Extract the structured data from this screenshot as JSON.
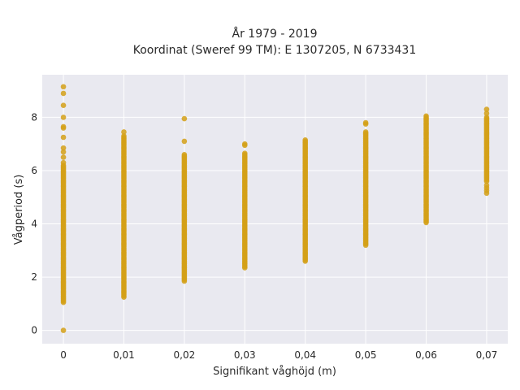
{
  "chart_data": {
    "type": "scatter",
    "title_lines": [
      "År 1979 - 2019",
      "Koordinat (Sweref 99 TM): E 1307205, N 6733431"
    ],
    "xlabel": "Signifikant våghöjd (m)",
    "ylabel": "Vågperiod (s)",
    "xlim": [
      -0.0035,
      0.0735
    ],
    "ylim": [
      -0.5,
      9.6
    ],
    "x_ticks": [
      0,
      0.01,
      0.02,
      0.03,
      0.04,
      0.05,
      0.06,
      0.07
    ],
    "x_tick_labels": [
      "0",
      "0,01",
      "0,02",
      "0,03",
      "0,04",
      "0,05",
      "0,06",
      "0,07"
    ],
    "y_ticks": [
      0,
      2,
      4,
      6,
      8
    ],
    "y_tick_labels": [
      "0",
      "2",
      "4",
      "6",
      "8"
    ],
    "grid": true,
    "background": "#e9e9f0",
    "grid_color": "#ffffff",
    "marker_color": "#d4a017",
    "columns": [
      {
        "x": 0,
        "min": 1.05,
        "max": 6.2,
        "extra": [
          0.0,
          6.3,
          6.5,
          6.7,
          6.85,
          7.25,
          7.6,
          7.65,
          8.0,
          8.45,
          8.9,
          9.15
        ]
      },
      {
        "x": 0.01,
        "min": 1.25,
        "max": 7.3,
        "extra": [
          7.45
        ]
      },
      {
        "x": 0.02,
        "min": 1.85,
        "max": 6.6,
        "extra": [
          7.1,
          7.95
        ]
      },
      {
        "x": 0.03,
        "min": 2.35,
        "max": 6.65,
        "extra": [
          6.95,
          7.0
        ]
      },
      {
        "x": 0.04,
        "min": 2.6,
        "max": 7.15,
        "extra": []
      },
      {
        "x": 0.05,
        "min": 3.2,
        "max": 7.45,
        "extra": [
          7.75,
          7.8
        ]
      },
      {
        "x": 0.06,
        "min": 4.05,
        "max": 8.05,
        "extra": []
      },
      {
        "x": 0.07,
        "min": 5.6,
        "max": 8.0,
        "extra": [
          5.15,
          5.25,
          5.35,
          5.45,
          8.15,
          8.3
        ]
      }
    ]
  }
}
